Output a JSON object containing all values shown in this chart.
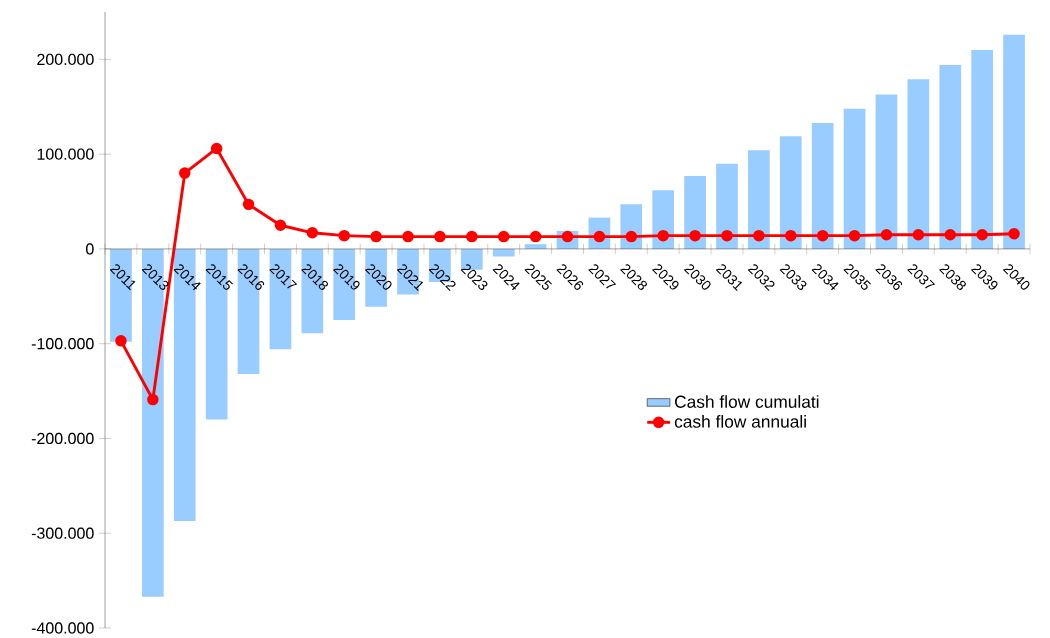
{
  "chart_data": {
    "type": "bar",
    "categories": [
      "2011",
      "2013",
      "2014",
      "2015",
      "2016",
      "2017",
      "2018",
      "2019",
      "2020",
      "2021",
      "2022",
      "2023",
      "2024",
      "2025",
      "2026",
      "2027",
      "2028",
      "2029",
      "2030",
      "2031",
      "2032",
      "2033",
      "2034",
      "2035",
      "2036",
      "2037",
      "2038",
      "2039",
      "2040"
    ],
    "series": [
      {
        "name": "Cash flow cumulati",
        "color": "#99ccff",
        "values": [
          -98000,
          -367000,
          -287000,
          -180000,
          -132000,
          -106000,
          -89000,
          -75000,
          -61000,
          -48000,
          -35000,
          -22000,
          -8000,
          5000,
          19000,
          33000,
          47000,
          62000,
          77000,
          90000,
          104000,
          119000,
          133000,
          148000,
          163000,
          179000,
          194000,
          210000,
          226000
        ]
      },
      {
        "name": "cash flow annuali",
        "type": "line",
        "color": "#ff0000",
        "marker": "circle",
        "values": [
          -97000,
          -159000,
          80000,
          106000,
          47000,
          25000,
          17000,
          14000,
          13000,
          13000,
          13000,
          13000,
          13000,
          13000,
          13000,
          13000,
          13000,
          14000,
          14000,
          14000,
          14000,
          14000,
          14000,
          14000,
          15000,
          15000,
          15000,
          15000,
          16000
        ]
      }
    ],
    "ylim": [
      -400000,
      250000
    ],
    "yticks": [
      {
        "value": -400000,
        "label": "-400.000"
      },
      {
        "value": -300000,
        "label": "-300.000"
      },
      {
        "value": -200000,
        "label": "-200.000"
      },
      {
        "value": -100000,
        "label": "-100.000"
      },
      {
        "value": 0,
        "label": "0"
      },
      {
        "value": 100000,
        "label": "100.000"
      },
      {
        "value": 200000,
        "label": "200.000"
      }
    ],
    "legend": "right"
  }
}
